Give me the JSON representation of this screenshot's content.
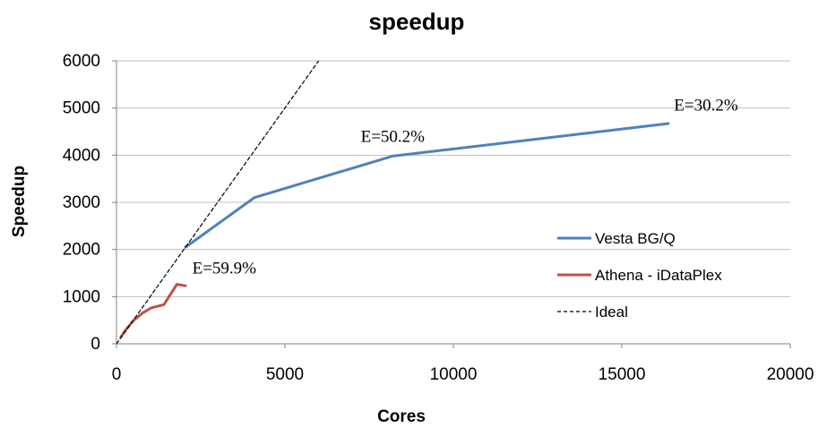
{
  "chart_data": {
    "type": "line",
    "title": "speedup",
    "xlabel": "Cores",
    "ylabel": "Speedup",
    "xlim": [
      0,
      20000
    ],
    "ylim": [
      0,
      6000
    ],
    "xticks": [
      0,
      5000,
      10000,
      15000,
      20000
    ],
    "yticks": [
      0,
      1000,
      2000,
      3000,
      4000,
      5000,
      6000
    ],
    "grid": "horizontal",
    "legend_position": "right",
    "series": [
      {
        "name": "Vesta BG/Q",
        "color": "#4f81bd",
        "style": "solid",
        "x": [
          2048,
          4096,
          8192,
          16384
        ],
        "y": [
          2048,
          3100,
          3980,
          4670
        ]
      },
      {
        "name": "Athena - iDataPlex",
        "color": "#c0504d",
        "style": "solid",
        "x": [
          128,
          256,
          512,
          768,
          1024,
          1408,
          1792,
          2048
        ],
        "y": [
          140,
          280,
          500,
          650,
          760,
          830,
          1260,
          1230
        ]
      },
      {
        "name": "Ideal",
        "color": "#000000",
        "style": "dashed",
        "x": [
          0,
          6000
        ],
        "y": [
          0,
          6000
        ]
      }
    ],
    "annotations": [
      {
        "text": "E=30.2%",
        "x": 17500,
        "y": 4950
      },
      {
        "text": "E=50.2%",
        "x": 8200,
        "y": 4280
      },
      {
        "text": "E=59.9%",
        "x": 3200,
        "y": 1490
      }
    ]
  }
}
